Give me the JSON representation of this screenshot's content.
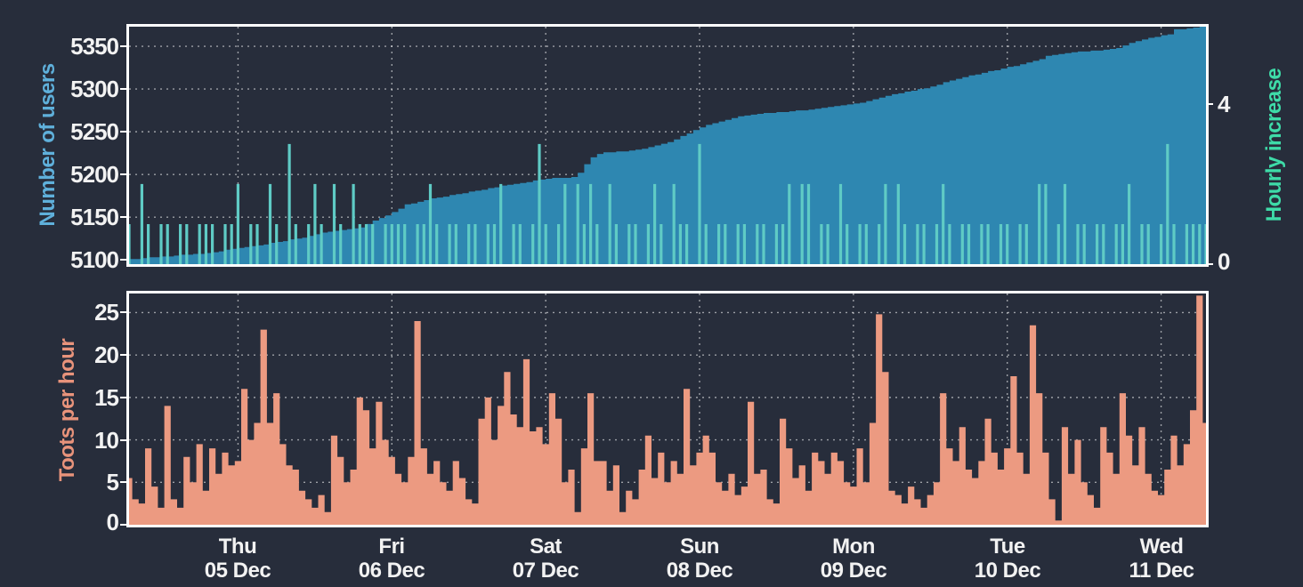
{
  "page": {
    "background": "#272D3B",
    "border_color": "#FFFFFF",
    "grid_color": "rgba(255,255,255,0.55)",
    "tick_text_color": "#F2F2F2"
  },
  "x_axis": {
    "hours_total": 168,
    "tick_hours": [
      17,
      41,
      65,
      89,
      113,
      137,
      161
    ],
    "tick_labels": [
      {
        "line1": "Thu",
        "line2": "05 Dec"
      },
      {
        "line1": "Fri",
        "line2": "06 Dec"
      },
      {
        "line1": "Sat",
        "line2": "07 Dec"
      },
      {
        "line1": "Sun",
        "line2": "08 Dec"
      },
      {
        "line1": "Mon",
        "line2": "09 Dec"
      },
      {
        "line1": "Tue",
        "line2": "10 Dec"
      },
      {
        "line1": "Wed",
        "line2": "11 Dec"
      }
    ]
  },
  "chart_data": [
    {
      "id": "users",
      "type": "area",
      "ylabel_left": "Number of users",
      "ylabel_right": "Hourly increase",
      "left_axis": {
        "color": "#5FB0DB",
        "range": [
          5095,
          5373
        ],
        "ticks": [
          5100,
          5150,
          5200,
          5250,
          5300,
          5350
        ],
        "tick_labels": [
          "5350",
          "5300",
          "5250",
          "5200",
          "5150",
          "5100"
        ]
      },
      "right_axis": {
        "color": "#3EDBA8",
        "range": [
          0,
          5.93
        ],
        "ticks": [
          4,
          0
        ],
        "tick_labels": [
          "4",
          "0"
        ]
      },
      "series": [
        {
          "name": "Number of users",
          "render": "step-area",
          "axis": "left",
          "color": "#2E87B1",
          "values": [
            5101,
            5101,
            5102,
            5103,
            5103,
            5104,
            5104,
            5105,
            5106,
            5106,
            5107,
            5107,
            5108,
            5109,
            5110,
            5112,
            5113,
            5114,
            5115,
            5116,
            5117,
            5118,
            5120,
            5121,
            5122,
            5124,
            5125,
            5126,
            5128,
            5130,
            5132,
            5133,
            5134,
            5135,
            5136,
            5137,
            5138,
            5142,
            5146,
            5149,
            5152,
            5156,
            5160,
            5165,
            5166,
            5168,
            5170,
            5172,
            5173,
            5174,
            5176,
            5177,
            5178,
            5180,
            5181,
            5182,
            5184,
            5185,
            5187,
            5188,
            5189,
            5190,
            5191,
            5193,
            5194,
            5195,
            5196,
            5196,
            5196,
            5197,
            5202,
            5212,
            5220,
            5224,
            5226,
            5226,
            5227,
            5227,
            5228,
            5229,
            5230,
            5232,
            5234,
            5236,
            5238,
            5241,
            5245,
            5248,
            5252,
            5255,
            5258,
            5260,
            5262,
            5264,
            5266,
            5268,
            5269,
            5270,
            5271,
            5272,
            5272,
            5273,
            5273,
            5274,
            5275,
            5275,
            5276,
            5277,
            5278,
            5279,
            5280,
            5281,
            5282,
            5283,
            5284,
            5286,
            5288,
            5290,
            5292,
            5294,
            5295,
            5297,
            5298,
            5300,
            5301,
            5303,
            5305,
            5308,
            5310,
            5312,
            5314,
            5316,
            5317,
            5319,
            5321,
            5322,
            5324,
            5326,
            5327,
            5329,
            5331,
            5333,
            5335,
            5339,
            5340,
            5341,
            5342,
            5343,
            5344,
            5344,
            5345,
            5345,
            5346,
            5347,
            5348,
            5351,
            5354,
            5356,
            5358,
            5360,
            5361,
            5363,
            5364,
            5370,
            5370,
            5371,
            5372,
            5373,
            5375
          ]
        },
        {
          "name": "Hourly increase",
          "render": "needle-bar",
          "axis": "right",
          "color": "#5FCBC5",
          "values": [
            1,
            0,
            2,
            1,
            0,
            1,
            1,
            0,
            1,
            1,
            0,
            1,
            1,
            1,
            0,
            1,
            1,
            2,
            0,
            1,
            1,
            0,
            2,
            1,
            0,
            3,
            1,
            0,
            1,
            2,
            1,
            0,
            2,
            1,
            0,
            2,
            1,
            1,
            1,
            0,
            1,
            1,
            1,
            1,
            0,
            1,
            1,
            2,
            1,
            0,
            1,
            1,
            0,
            1,
            1,
            0,
            1,
            1,
            2,
            0,
            1,
            1,
            0,
            1,
            3,
            1,
            0,
            1,
            2,
            0,
            2,
            1,
            2,
            1,
            0,
            2,
            1,
            0,
            1,
            1,
            0,
            1,
            2,
            1,
            0,
            2,
            1,
            1,
            0,
            3,
            1,
            0,
            1,
            1,
            0,
            1,
            1,
            0,
            1,
            1,
            0,
            1,
            1,
            2,
            0,
            2,
            2,
            0,
            1,
            1,
            0,
            2,
            1,
            0,
            1,
            1,
            0,
            1,
            2,
            0,
            2,
            1,
            0,
            1,
            1,
            0,
            1,
            2,
            1,
            0,
            1,
            1,
            0,
            1,
            1,
            0,
            1,
            1,
            0,
            1,
            1,
            0,
            2,
            2,
            0,
            1,
            2,
            0,
            1,
            1,
            0,
            1,
            1,
            0,
            1,
            1,
            2,
            0,
            1,
            1,
            0,
            1,
            3,
            1,
            0,
            1,
            1,
            1,
            1
          ]
        }
      ]
    },
    {
      "id": "toots",
      "type": "bar",
      "ylabel_left": "Toots per hour",
      "left_axis": {
        "color": "#E8937B",
        "range": [
          0,
          27.25
        ],
        "ticks": [
          5,
          10,
          15,
          20,
          25
        ],
        "tick_labels": [
          "25",
          "20",
          "15",
          "10",
          "5",
          "0"
        ]
      },
      "series": [
        {
          "name": "Toots per hour",
          "render": "step-bar",
          "axis": "left",
          "color": "#EC9A81",
          "values": [
            5.5,
            3,
            2.5,
            9,
            4.5,
            2,
            14,
            3,
            2,
            8,
            5,
            9.5,
            4,
            9,
            6,
            8.5,
            7,
            7.5,
            16,
            10,
            12,
            23,
            12,
            15.5,
            9.5,
            7,
            6.5,
            4,
            3,
            2,
            3.5,
            1.5,
            10.5,
            8,
            5,
            6.5,
            15,
            13.5,
            9,
            14.5,
            10,
            8,
            6,
            5,
            8,
            24,
            9,
            6,
            7.5,
            5,
            4,
            7.5,
            5.5,
            3,
            2.5,
            12.5,
            15,
            10,
            14,
            18,
            13,
            11.5,
            19.5,
            11,
            11.5,
            9.5,
            15.5,
            12.5,
            5,
            6.5,
            1.5,
            9,
            15.5,
            7.5,
            7.5,
            4,
            7,
            1.5,
            4,
            3,
            6.5,
            10.5,
            5.5,
            8.5,
            5,
            7.5,
            6,
            16,
            7,
            8.5,
            10.5,
            8.5,
            5,
            4,
            6,
            3.5,
            4.5,
            14.5,
            6,
            6.5,
            3,
            2.5,
            12.5,
            9,
            5.5,
            7,
            4,
            8.5,
            7.5,
            6,
            8.5,
            7.5,
            5,
            4.5,
            9,
            5,
            12,
            24.8,
            18,
            4,
            3.5,
            2.5,
            4.5,
            3,
            2,
            3.5,
            5,
            15.5,
            9,
            7.5,
            11.5,
            6.5,
            5.5,
            7.5,
            12.5,
            8.5,
            6.5,
            9,
            17.5,
            8.5,
            6,
            23.5,
            15.5,
            8.5,
            3,
            0.5,
            11.5,
            6,
            10,
            5,
            3.5,
            2,
            11.5,
            8.5,
            6,
            15.5,
            10.5,
            7,
            11.5,
            6,
            4,
            3.5,
            6.5,
            10.5,
            7,
            9.5,
            13.5,
            27,
            12
          ]
        }
      ]
    }
  ]
}
